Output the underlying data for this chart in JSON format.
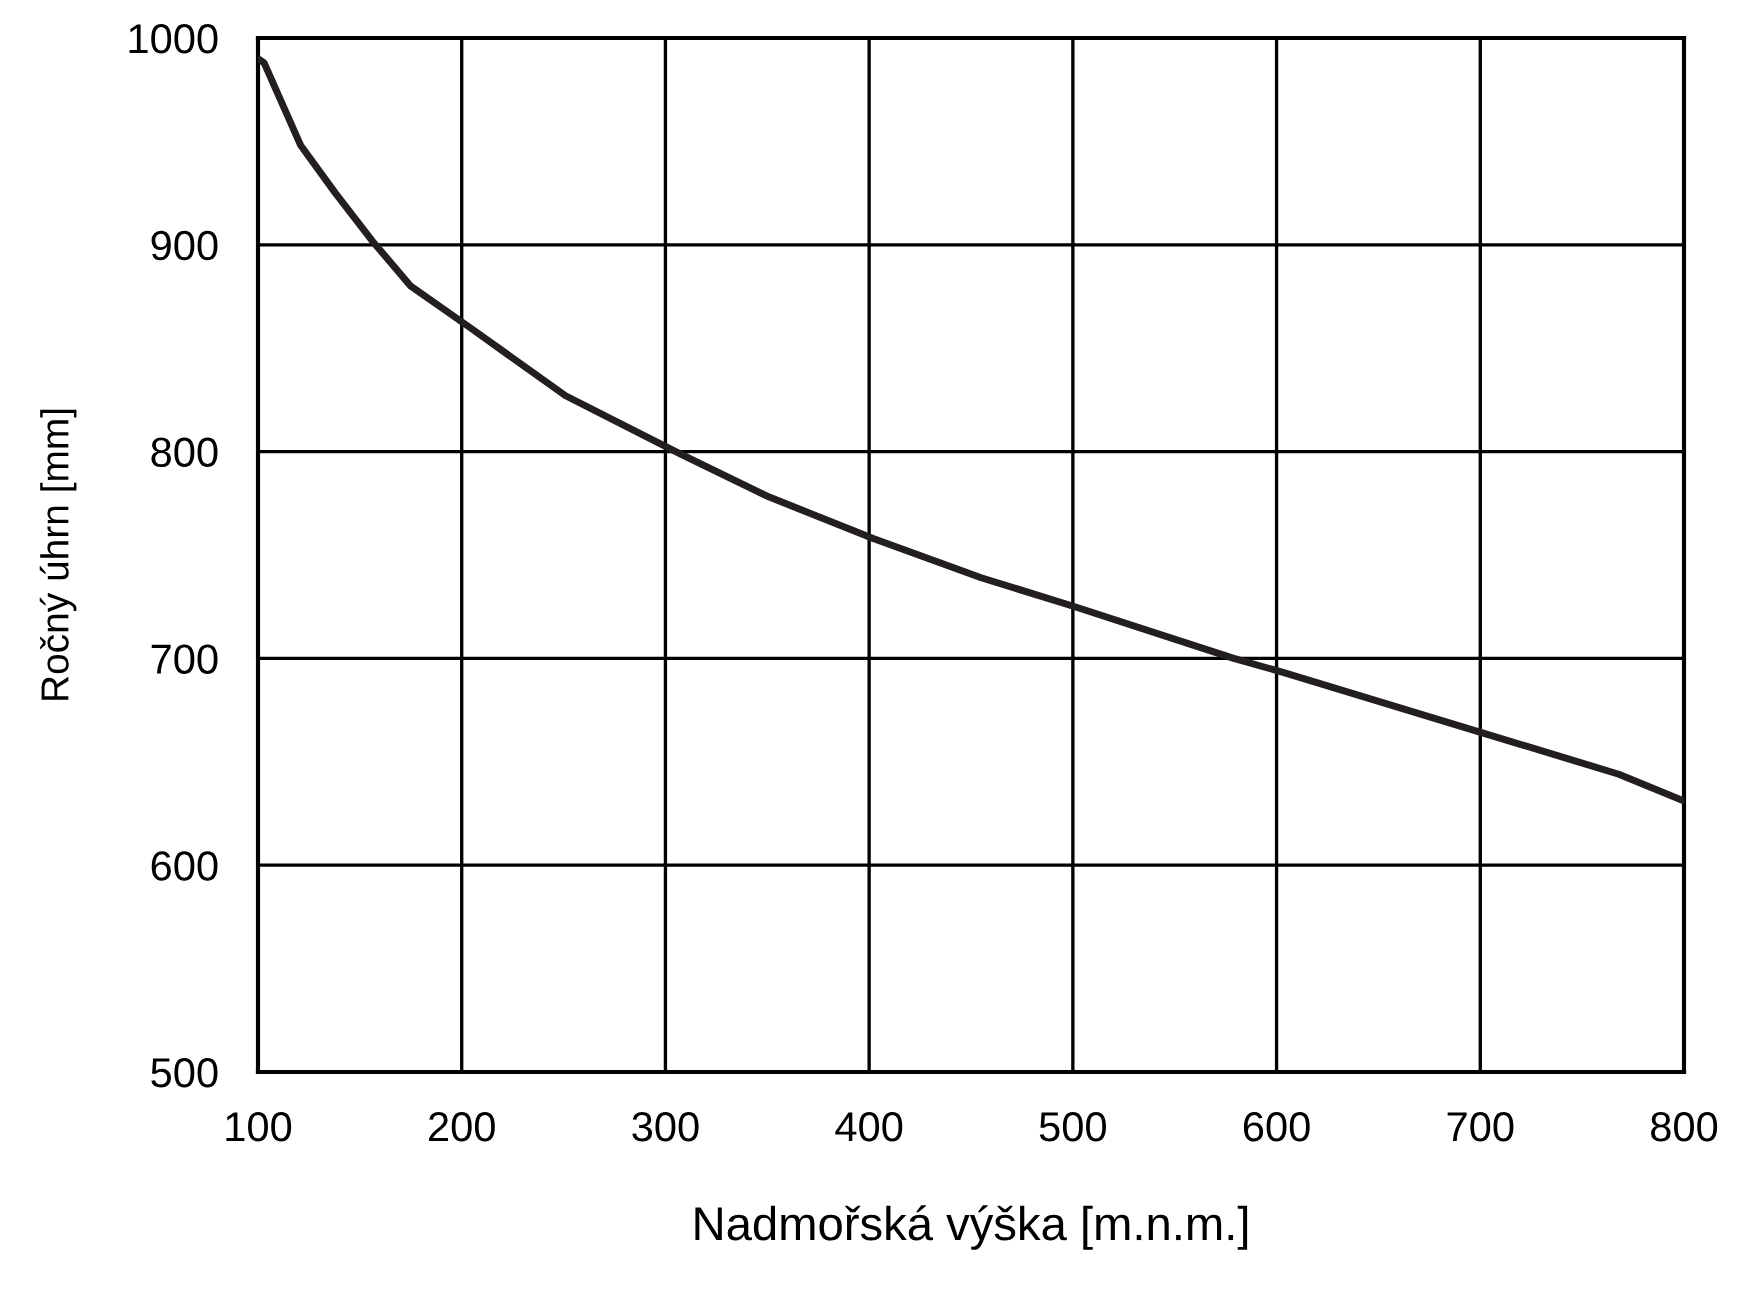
{
  "chart_data": {
    "type": "line",
    "xlabel": "Nadmořská výška [m.n.m.]",
    "ylabel": "Ročný úhrn [mm]",
    "series": [
      {
        "color": "#231f20",
        "x": [
          100,
          103,
          121,
          138,
          156,
          175,
          204,
          251,
          307,
          351,
          402,
          455,
          501,
          579,
          604,
          701,
          768,
          800
        ],
        "values": [
          990,
          988,
          948,
          925,
          902,
          880,
          860,
          827,
          799,
          778,
          758,
          739,
          725,
          700,
          693,
          664,
          644,
          631
        ]
      }
    ],
    "xlim": [
      100,
      800
    ],
    "xticks": [
      100,
      200,
      300,
      400,
      500,
      600,
      700,
      800
    ],
    "ylim": [
      500,
      1000
    ],
    "yticks": [
      500,
      600,
      700,
      800,
      900,
      1000
    ],
    "grid": true,
    "marker": "none",
    "line_style": "solid"
  }
}
